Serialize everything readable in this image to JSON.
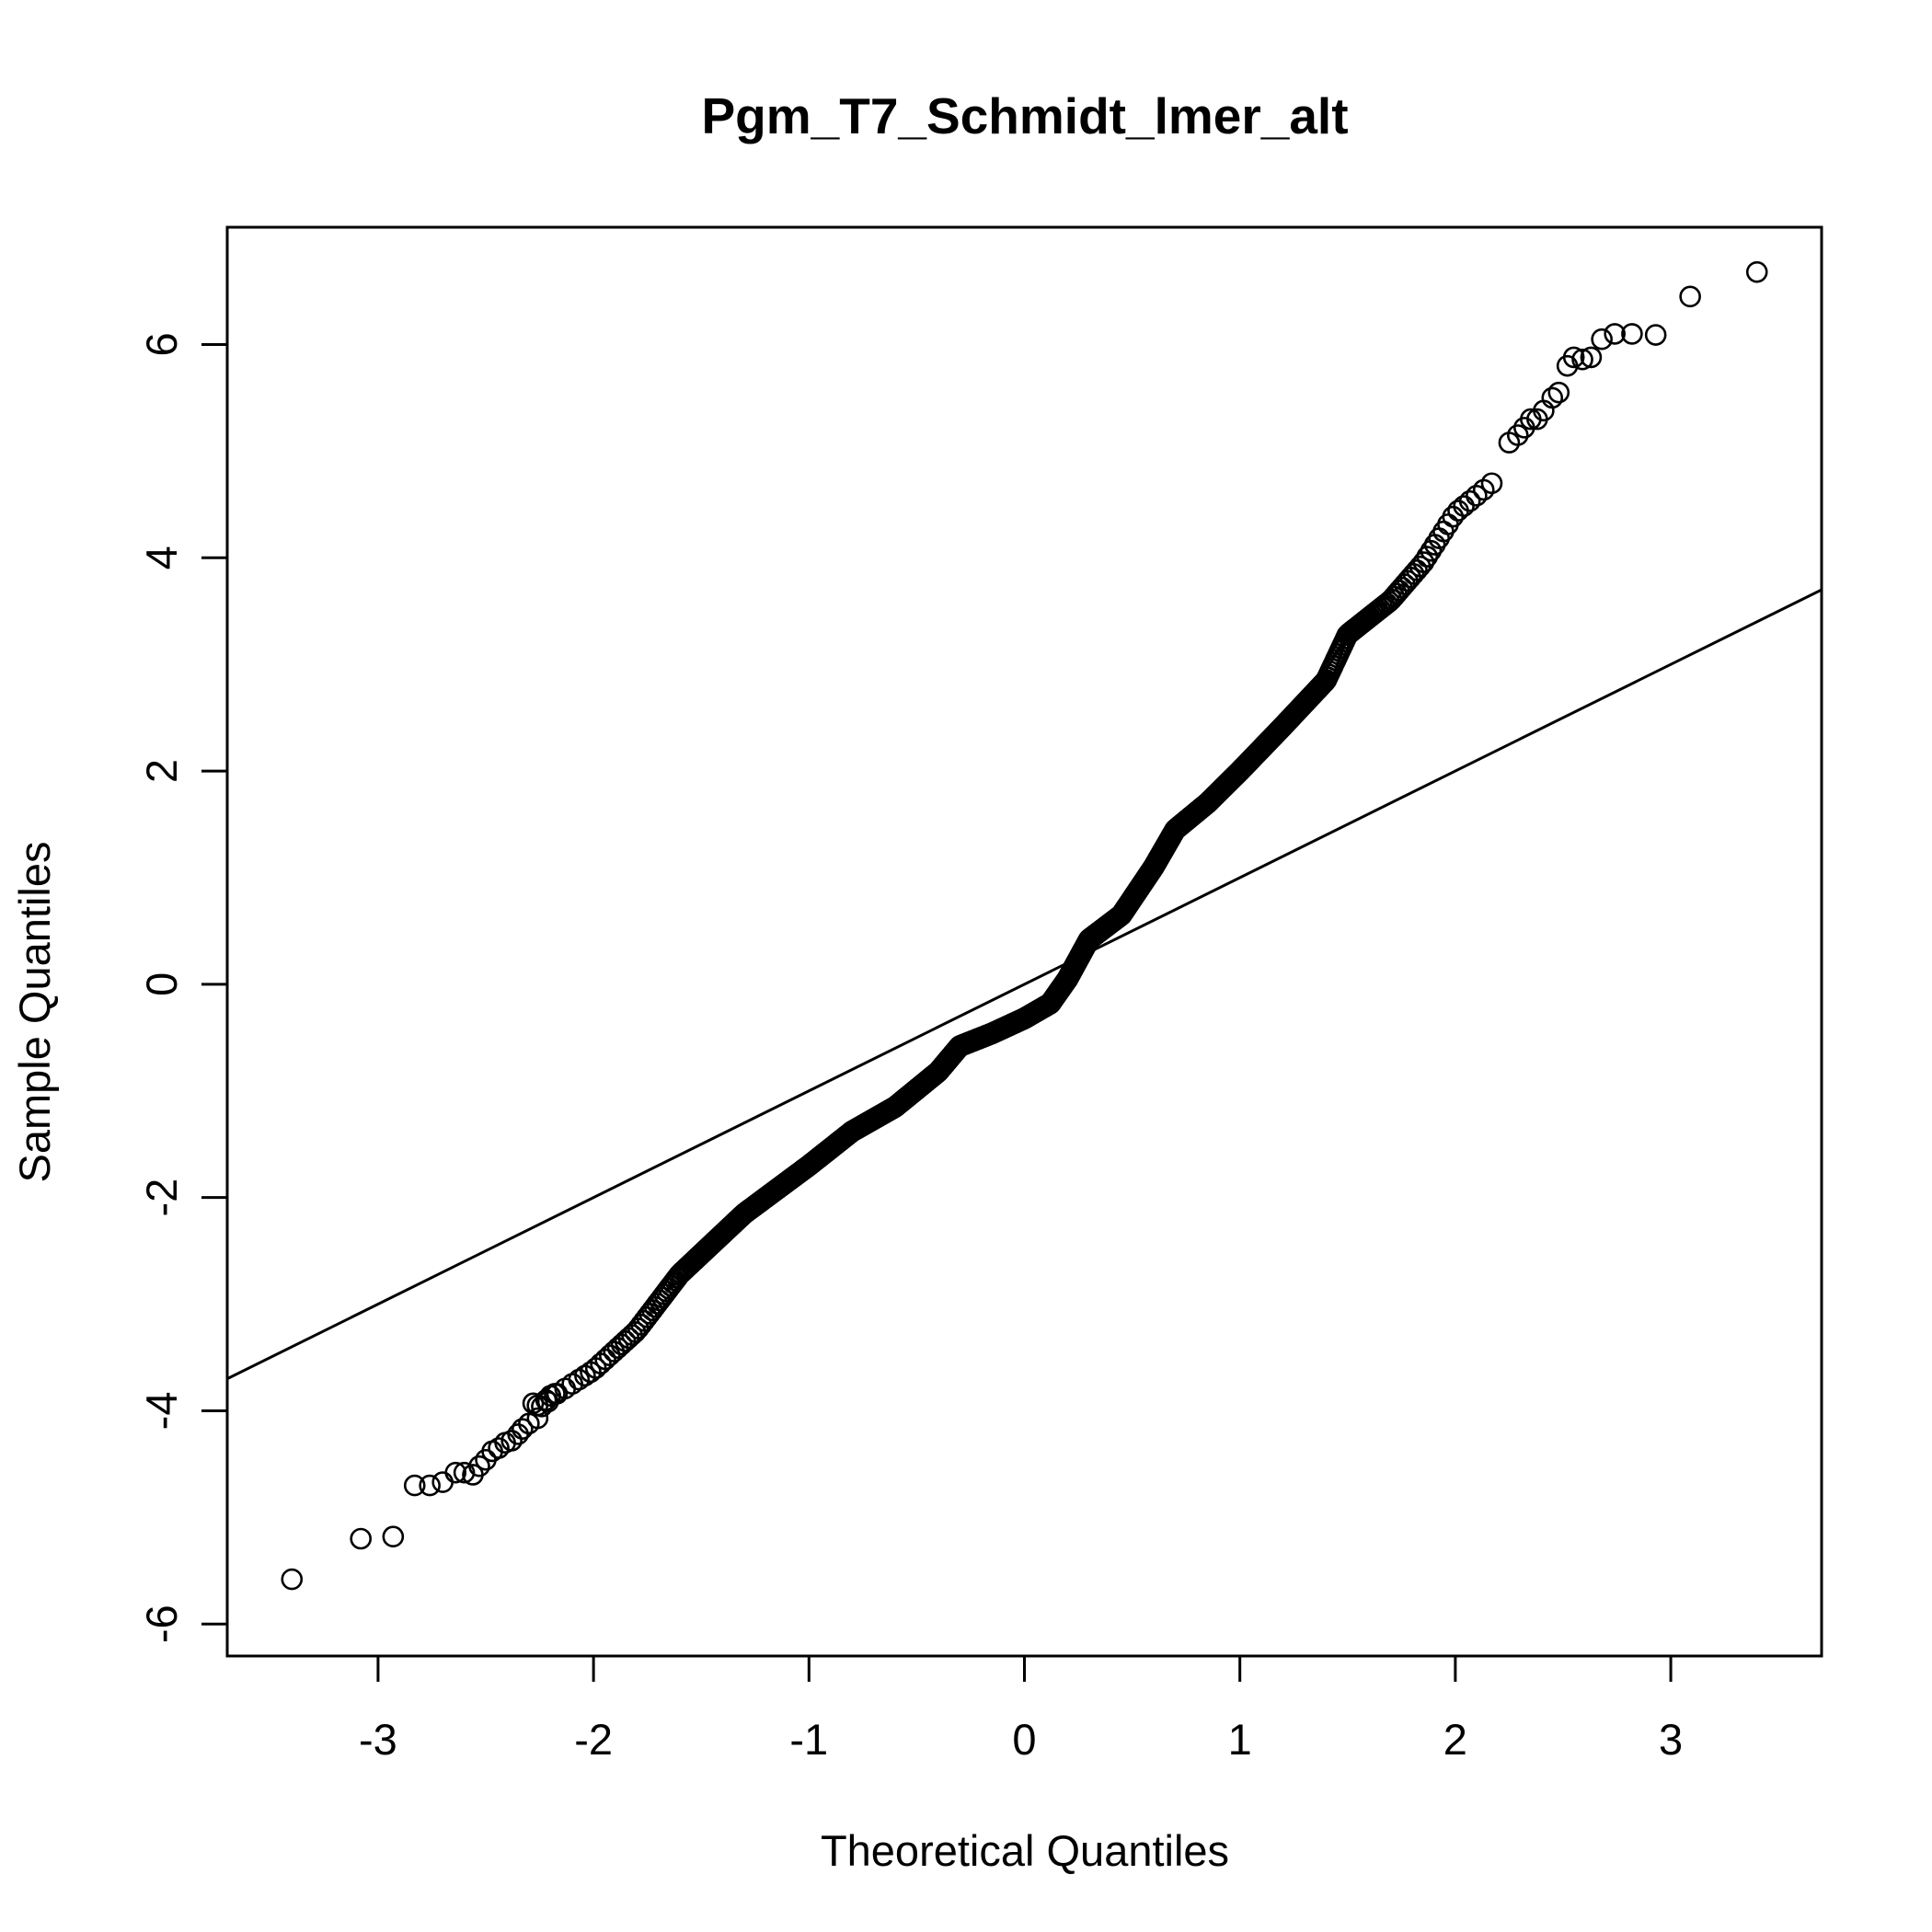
{
  "chart_data": {
    "type": "scatter",
    "title": "Pgm_T7_Schmidt_lmer_alt",
    "xlabel": "Theoretical Quantiles",
    "ylabel": "Sample Quantiles",
    "xlim": [
      -3.7,
      3.7
    ],
    "ylim": [
      -6.3,
      7.1
    ],
    "x_ticks": [
      -3,
      -2,
      -1,
      0,
      1,
      2,
      3
    ],
    "x_tick_labels": [
      "-3",
      "-2",
      "-1",
      "0",
      "1",
      "2",
      "3"
    ],
    "y_ticks": [
      -6,
      -4,
      -2,
      0,
      2,
      4,
      6
    ],
    "y_tick_labels": [
      "-6",
      "-4",
      "-2",
      "0",
      "2",
      "4",
      "6"
    ],
    "grid": false,
    "legend": "none",
    "reference_line": {
      "slope": 1.0,
      "intercept": 0.0
    },
    "marker": "open-circle",
    "colors": {
      "points": "#000000",
      "line": "#000000",
      "background": "#ffffff"
    },
    "curve_knots": [
      [
        -2.3,
        -4.2
      ],
      [
        -2.2,
        -3.88
      ],
      [
        -2.0,
        -3.62
      ],
      [
        -1.8,
        -3.25
      ],
      [
        -1.6,
        -2.72
      ],
      [
        -1.3,
        -2.15
      ],
      [
        -1.0,
        -1.7
      ],
      [
        -0.8,
        -1.38
      ],
      [
        -0.6,
        -1.15
      ],
      [
        -0.4,
        -0.82
      ],
      [
        -0.3,
        -0.58
      ],
      [
        -0.15,
        -0.46
      ],
      [
        0.0,
        -0.32
      ],
      [
        0.12,
        -0.18
      ],
      [
        0.2,
        0.05
      ],
      [
        0.3,
        0.42
      ],
      [
        0.45,
        0.65
      ],
      [
        0.6,
        1.1
      ],
      [
        0.7,
        1.45
      ],
      [
        0.85,
        1.7
      ],
      [
        1.0,
        2.0
      ],
      [
        1.2,
        2.42
      ],
      [
        1.4,
        2.85
      ],
      [
        1.5,
        3.28
      ],
      [
        1.7,
        3.6
      ],
      [
        1.85,
        3.95
      ],
      [
        2.0,
        4.42
      ],
      [
        2.2,
        4.75
      ]
    ],
    "curve_n": 1400,
    "tail_points": [
      [
        -3.4,
        -5.58
      ],
      [
        -3.08,
        -5.2
      ],
      [
        -2.93,
        -5.18
      ],
      [
        -2.83,
        -4.7
      ],
      [
        -2.76,
        -4.7
      ],
      [
        -2.7,
        -4.67
      ],
      [
        -2.64,
        -4.58
      ],
      [
        -2.6,
        -4.58
      ],
      [
        -2.56,
        -4.6
      ],
      [
        -2.53,
        -4.52
      ],
      [
        -2.5,
        -4.46
      ],
      [
        -2.47,
        -4.38
      ],
      [
        -2.44,
        -4.35
      ],
      [
        -2.41,
        -4.3
      ],
      [
        -2.38,
        -4.28
      ],
      [
        -2.35,
        -4.22
      ],
      [
        -2.33,
        -4.17
      ],
      [
        -2.3,
        -4.12
      ],
      [
        -2.28,
        -3.93
      ],
      [
        -2.26,
        -3.95
      ],
      [
        -2.24,
        -3.96
      ],
      [
        -2.22,
        -3.9
      ],
      [
        -2.2,
        -3.86
      ],
      [
        -2.18,
        -3.84
      ],
      [
        2.25,
        5.08
      ],
      [
        2.29,
        5.15
      ],
      [
        2.32,
        5.22
      ],
      [
        2.35,
        5.3
      ],
      [
        2.38,
        5.3
      ],
      [
        2.41,
        5.38
      ],
      [
        2.45,
        5.5
      ],
      [
        2.48,
        5.55
      ],
      [
        2.52,
        5.8
      ],
      [
        2.55,
        5.88
      ],
      [
        2.59,
        5.86
      ],
      [
        2.63,
        5.88
      ],
      [
        2.68,
        6.05
      ],
      [
        2.74,
        6.1
      ],
      [
        2.82,
        6.1
      ],
      [
        2.93,
        6.09
      ],
      [
        3.09,
        6.45
      ],
      [
        3.4,
        6.68
      ]
    ]
  }
}
